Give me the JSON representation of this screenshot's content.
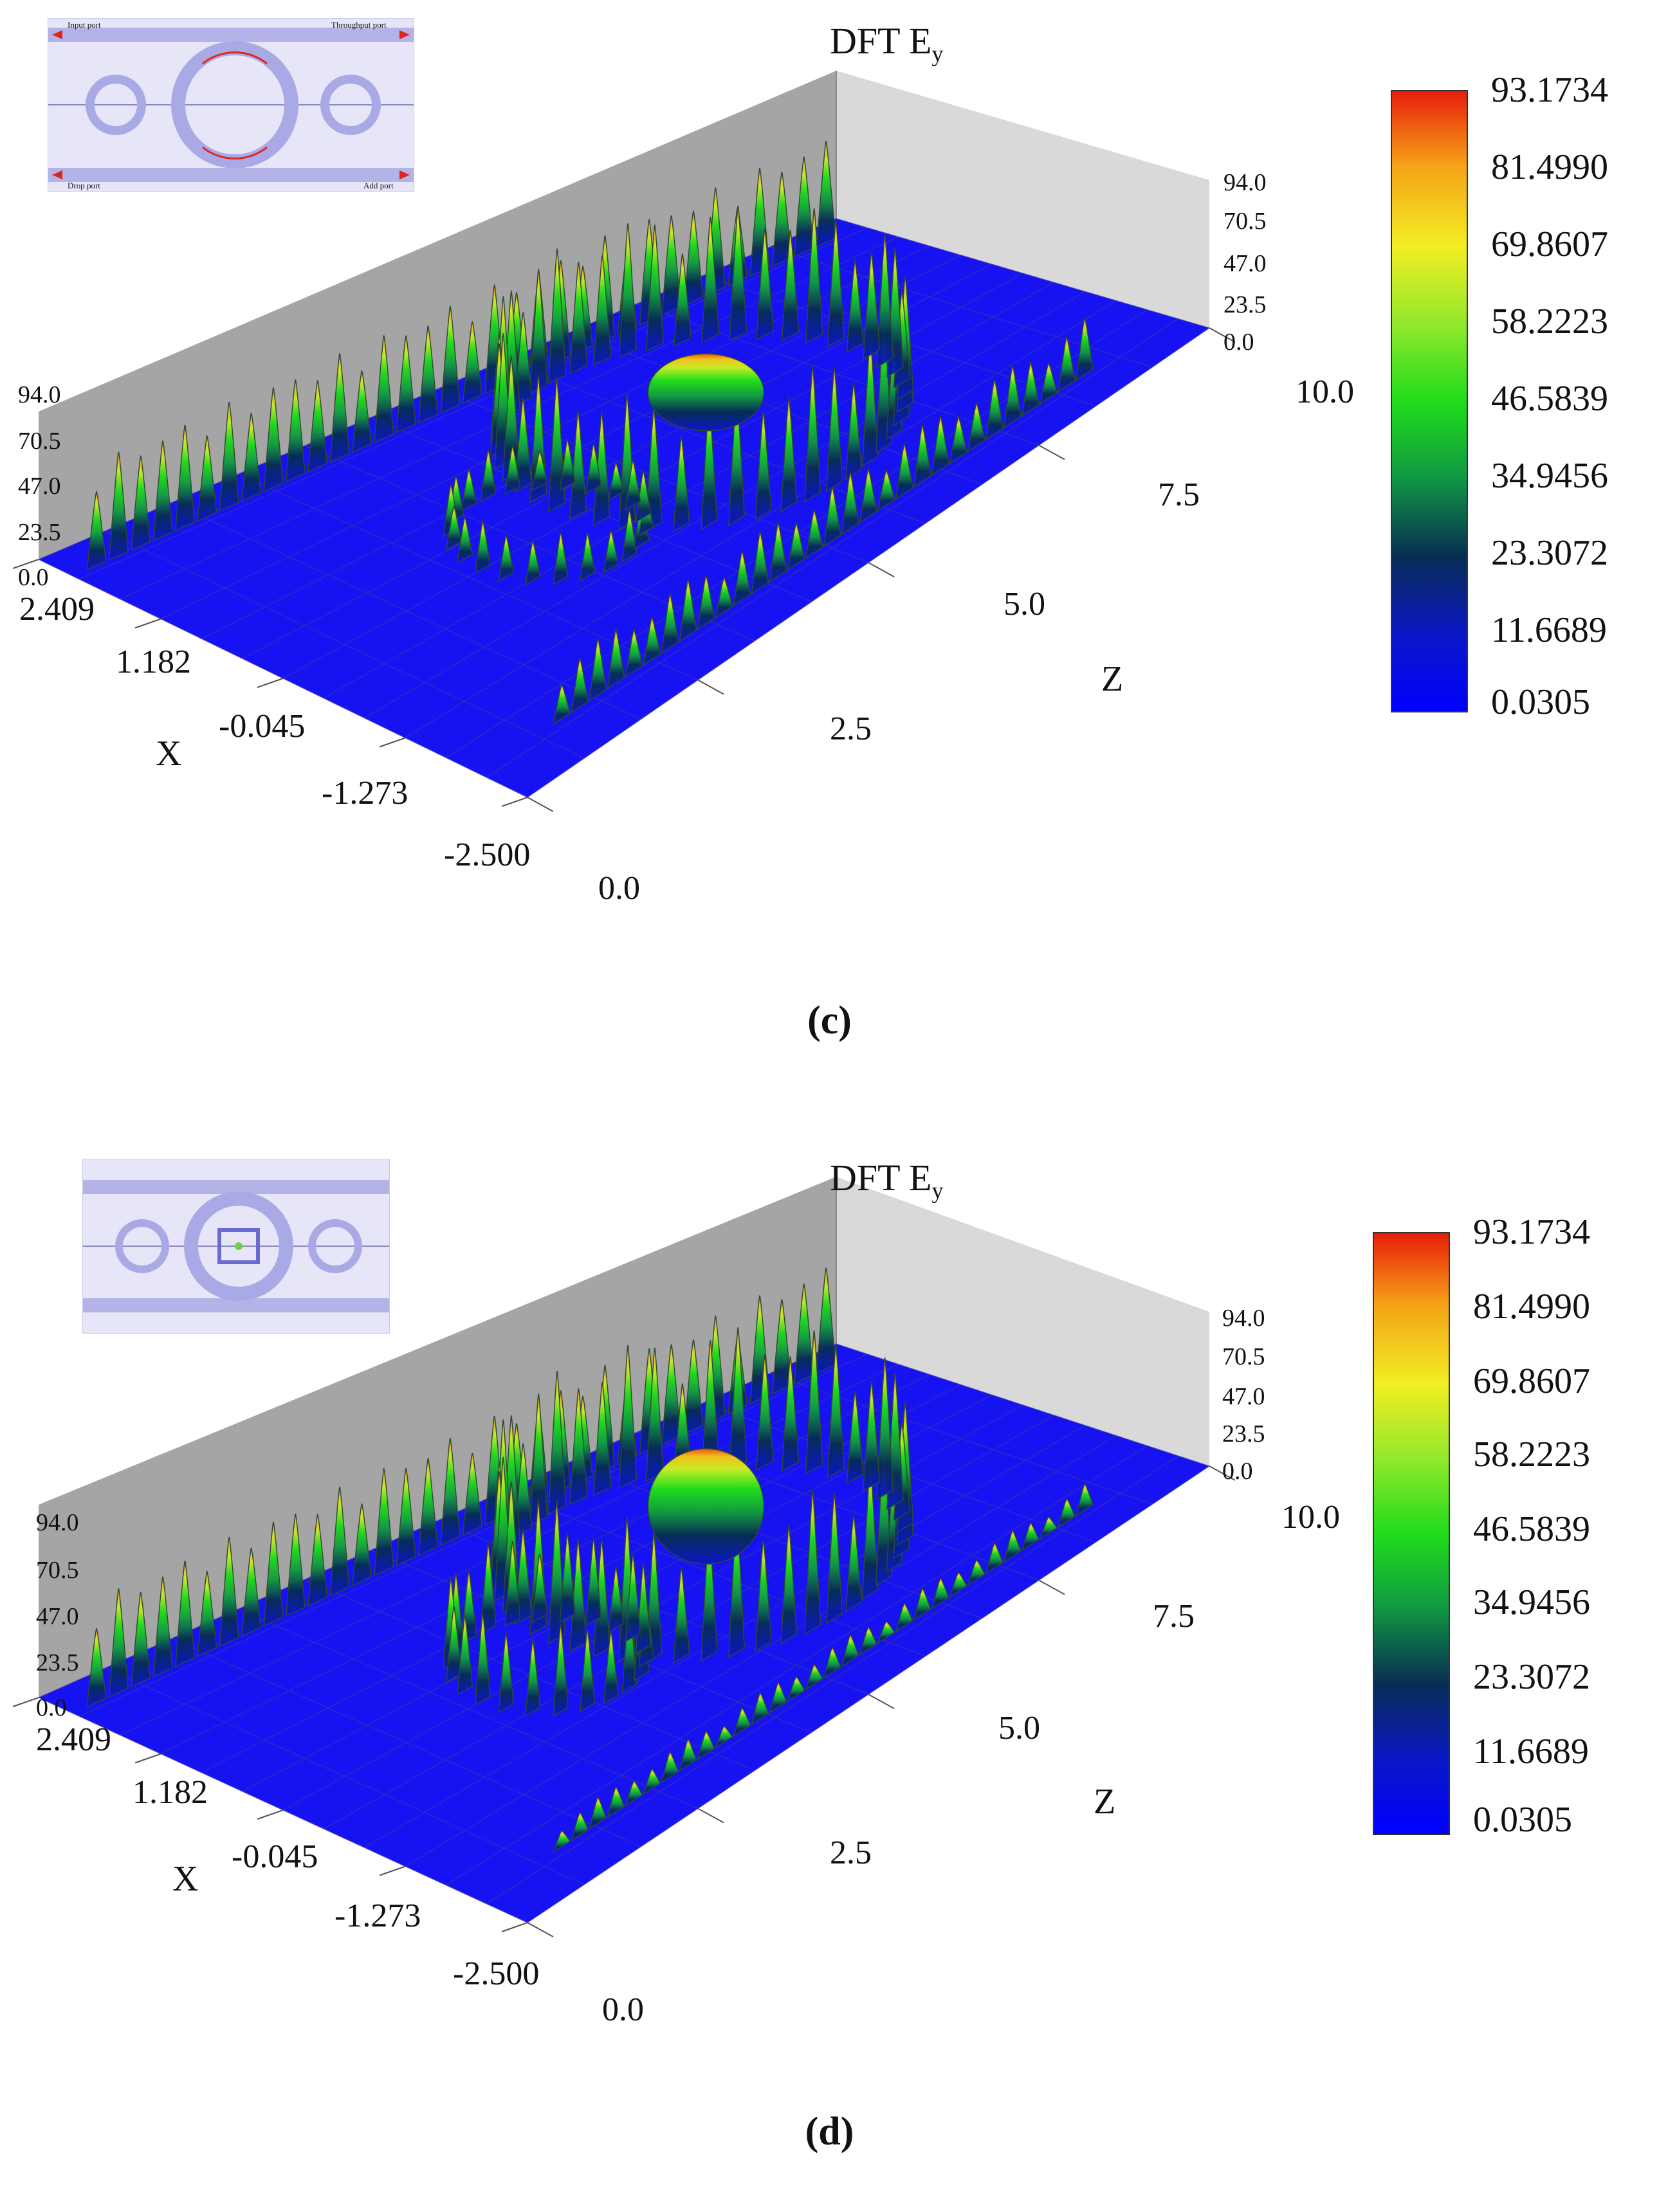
{
  "chart_data": [
    {
      "type": "surface3d",
      "panel": "c",
      "caption": "(c)",
      "title": "DFT E",
      "title_sub": "y",
      "xlabel": "X",
      "zlabel": "Z",
      "x_ticks": [
        "2.409",
        "1.182",
        "-0.045",
        "-1.273",
        "-2.500"
      ],
      "z_ticks": [
        "0.0",
        "2.5",
        "5.0",
        "7.5",
        "10.0"
      ],
      "height_ticks": [
        "94.0",
        "70.5",
        "47.0",
        "23.5",
        "0.0"
      ],
      "xlim": [
        -2.5,
        2.409
      ],
      "zlim": [
        0.0,
        10.0
      ],
      "height_lim": [
        0.0,
        94.0
      ],
      "colorbar_ticks": [
        "93.1734",
        "81.4990",
        "69.8607",
        "58.2223",
        "46.5839",
        "34.9456",
        "23.3072",
        "11.6689",
        "0.0305"
      ],
      "colorbar_range": [
        0.0305,
        93.1734
      ],
      "colormap": [
        "#0000ff",
        "#0a17c8",
        "#082d54",
        "#119a42",
        "#1fdc1a",
        "#8fe82c",
        "#f2ee22",
        "#f5a318",
        "#e81e0a"
      ],
      "inset_labels": {
        "input": "Input port",
        "through": "Throughput port",
        "drop": "Drop port",
        "add": "Add port"
      }
    },
    {
      "type": "surface3d",
      "panel": "d",
      "caption": "(d)",
      "title": "DFT E",
      "title_sub": "y",
      "xlabel": "X",
      "zlabel": "Z",
      "x_ticks": [
        "2.409",
        "1.182",
        "-0.045",
        "-1.273",
        "-2.500"
      ],
      "z_ticks": [
        "0.0",
        "2.5",
        "5.0",
        "7.5",
        "10.0"
      ],
      "height_ticks": [
        "94.0",
        "70.5",
        "47.0",
        "23.5",
        "0.0"
      ],
      "xlim": [
        -2.5,
        2.409
      ],
      "zlim": [
        0.0,
        10.0
      ],
      "height_lim": [
        0.0,
        94.0
      ],
      "colorbar_ticks": [
        "93.1734",
        "81.4990",
        "69.8607",
        "58.2223",
        "46.5839",
        "34.9456",
        "23.3072",
        "11.6689",
        "0.0305"
      ],
      "colorbar_range": [
        0.0305,
        93.1734
      ],
      "colormap": [
        "#0000ff",
        "#0a17c8",
        "#082d54",
        "#119a42",
        "#1fdc1a",
        "#8fe82c",
        "#f2ee22",
        "#f5a318",
        "#e81e0a"
      ]
    }
  ]
}
